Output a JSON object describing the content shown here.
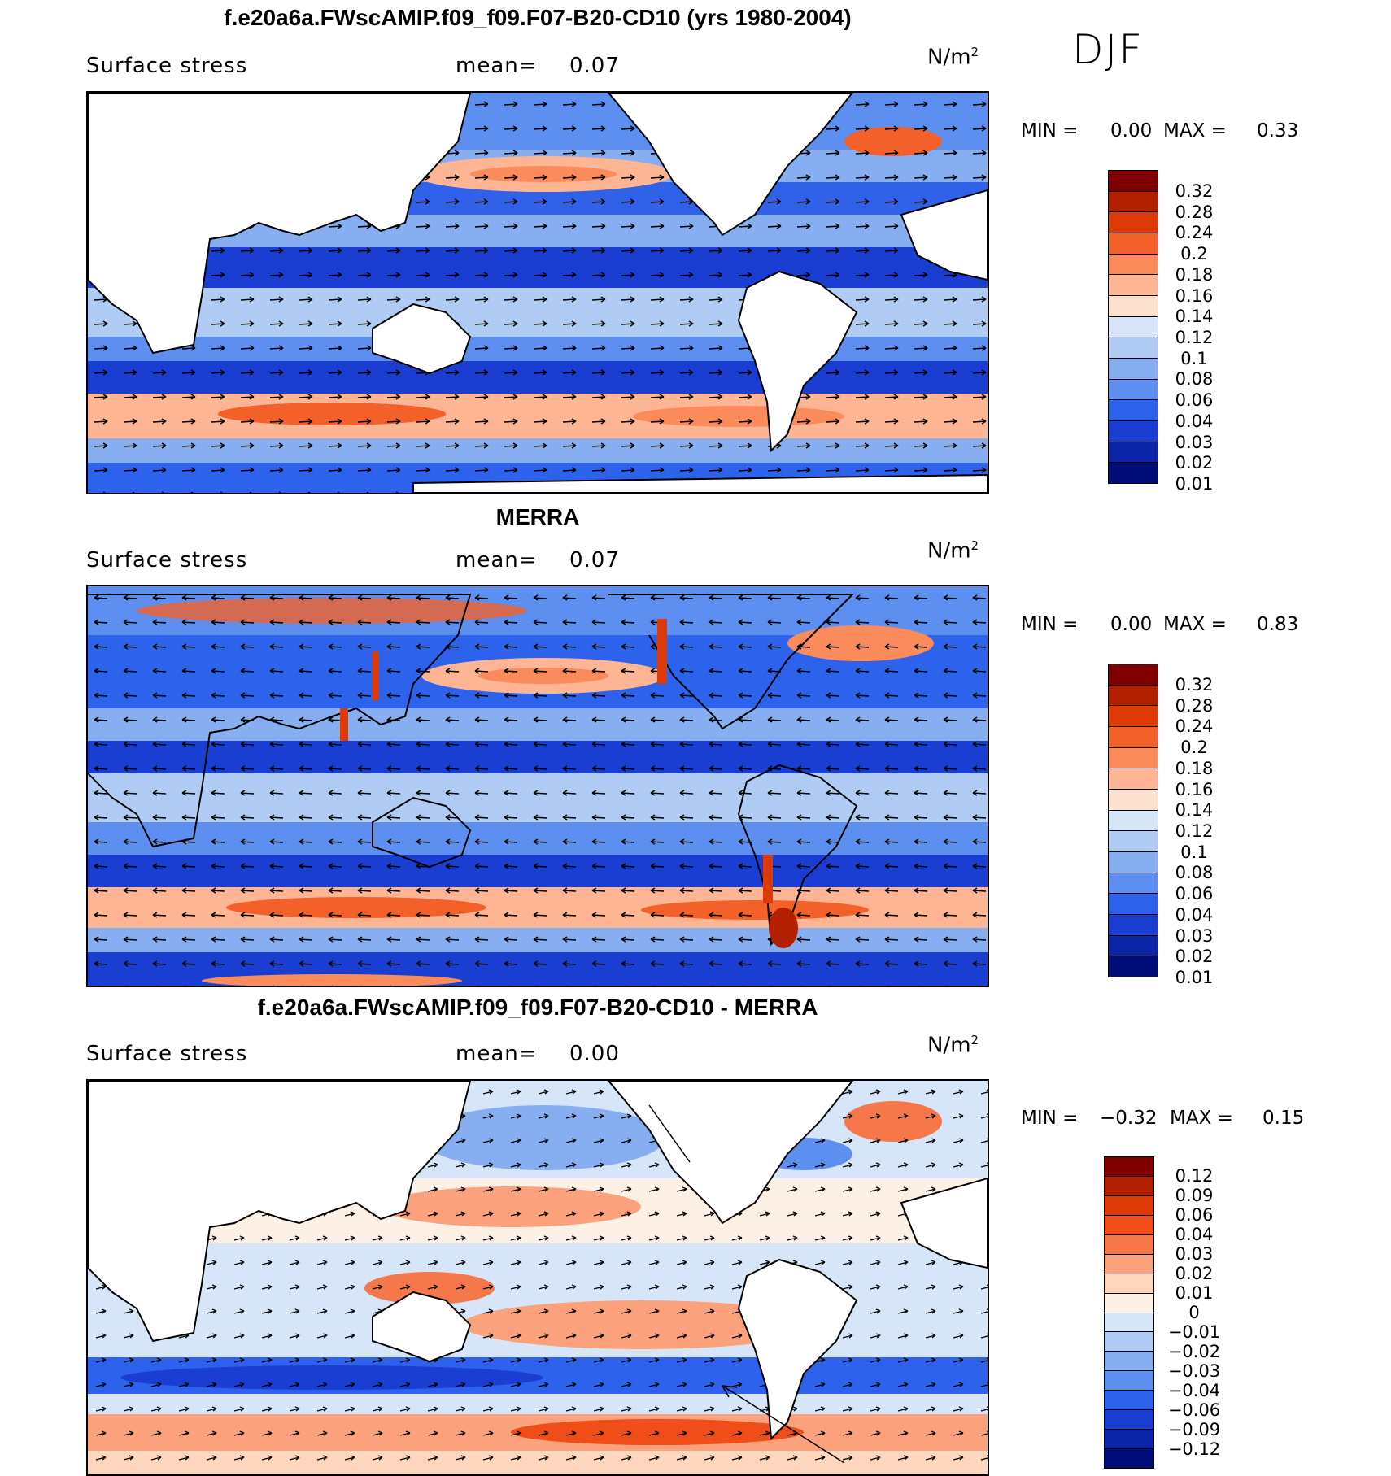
{
  "season": "DJF",
  "panels": [
    {
      "title": "f.e20a6a.FWscAMIP.f09_f09.F07-B20-CD10 (yrs 1980-2004)",
      "variable": "Surface stress",
      "mean_label": "mean=",
      "mean_value": "0.07",
      "units": "N/m",
      "units_exp": "2",
      "min_label": "MIN =",
      "min_value": "0.00",
      "max_label": "MAX =",
      "max_value": "0.33",
      "colorbar": {
        "colors": [
          "#7f0000",
          "#b22000",
          "#dd3a08",
          "#f4602a",
          "#fb8b5a",
          "#fdb593",
          "#fde3cf",
          "#d6e6f8",
          "#b0ccf4",
          "#86aef0",
          "#5c8ff0",
          "#2d62ec",
          "#1a3ed2",
          "#0b25a6",
          "#000d78"
        ],
        "labels": [
          "0.32",
          "0.28",
          "0.24",
          "0.2",
          "0.18",
          "0.16",
          "0.14",
          "0.12",
          "0.1",
          "0.08",
          "0.06",
          "0.04",
          "0.03",
          "0.02",
          "0.01"
        ]
      }
    },
    {
      "title": "MERRA",
      "variable": "Surface stress",
      "mean_label": "mean=",
      "mean_value": "0.07",
      "units": "N/m",
      "units_exp": "2",
      "min_label": "MIN =",
      "min_value": "0.00",
      "max_label": "MAX =",
      "max_value": "0.83",
      "colorbar": {
        "colors": [
          "#7f0000",
          "#b22000",
          "#dd3a08",
          "#f4602a",
          "#fb8b5a",
          "#fdb593",
          "#fde3cf",
          "#d6e6f8",
          "#b0ccf4",
          "#86aef0",
          "#5c8ff0",
          "#2d62ec",
          "#1a3ed2",
          "#0b25a6",
          "#000d78"
        ],
        "labels": [
          "0.32",
          "0.28",
          "0.24",
          "0.2",
          "0.18",
          "0.16",
          "0.14",
          "0.12",
          "0.1",
          "0.08",
          "0.06",
          "0.04",
          "0.03",
          "0.02",
          "0.01"
        ]
      }
    },
    {
      "title": "f.e20a6a.FWscAMIP.f09_f09.F07-B20-CD10 - MERRA",
      "variable": "Surface stress",
      "mean_label": "mean=",
      "mean_value": "0.00",
      "units": "N/m",
      "units_exp": "2",
      "min_label": "MIN =",
      "min_value": "−0.32",
      "max_label": "MAX =",
      "max_value": "0.15",
      "colorbar": {
        "colors": [
          "#7f0000",
          "#b22000",
          "#dd3a08",
          "#f04d18",
          "#f6784a",
          "#fba27c",
          "#fdd6bd",
          "#fdf1e6",
          "#d6e6f8",
          "#b0ccf4",
          "#86aef0",
          "#5c8ff0",
          "#2d62ec",
          "#1a3ed2",
          "#0b25a6",
          "#000d78"
        ],
        "labels": [
          "0.12",
          "0.09",
          "0.06",
          "0.04",
          "0.03",
          "0.02",
          "0.01",
          "0",
          "−0.01",
          "−0.02",
          "−0.03",
          "−0.04",
          "−0.06",
          "−0.09",
          "−0.12"
        ]
      }
    }
  ]
}
